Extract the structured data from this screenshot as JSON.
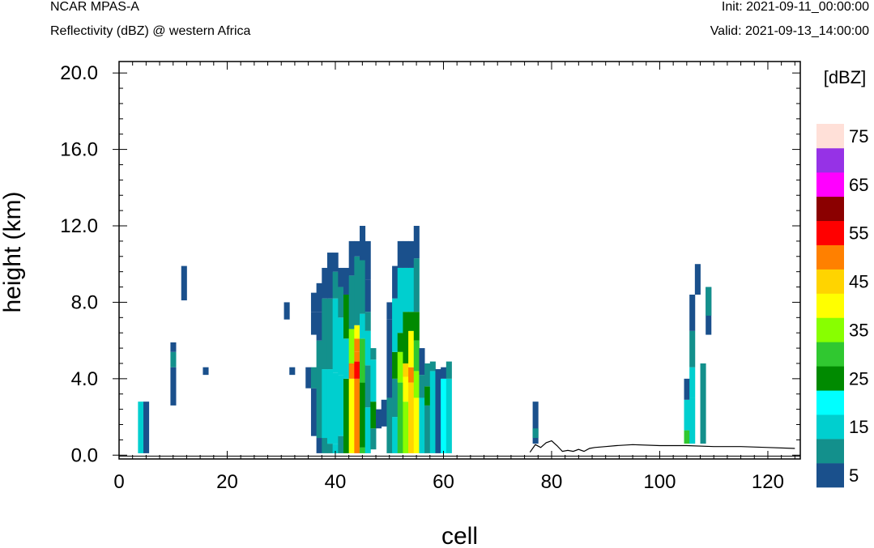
{
  "header": {
    "model": "NCAR MPAS-A",
    "field": "Reflectivity (dBZ) @ western Africa",
    "init": "Init: 2021-09-11_00:00:00",
    "valid": "Valid: 2021-09-13_14:00:00"
  },
  "chart_data": {
    "type": "heatmap",
    "xlabel": "cell",
    "ylabel": "height (km)",
    "xlim": [
      0,
      126
    ],
    "ylim": [
      -0.2,
      20.6
    ],
    "xticks": [
      "0",
      "20",
      "40",
      "60",
      "80",
      "100",
      "120"
    ],
    "xtick_values": [
      0,
      20,
      40,
      60,
      80,
      100,
      120
    ],
    "yticks": [
      "0.0",
      "4.0",
      "8.0",
      "12.0",
      "16.0",
      "20.0"
    ],
    "ytick_values": [
      0,
      4,
      8,
      12,
      16,
      20
    ],
    "colorbar": {
      "units": "[dBZ]",
      "levels": [
        5,
        10,
        15,
        20,
        25,
        30,
        35,
        40,
        45,
        50,
        55,
        60,
        65,
        70,
        75
      ],
      "labels": [
        "5",
        "15",
        "25",
        "35",
        "45",
        "55",
        "65",
        "75"
      ],
      "colors": [
        "#1a508c",
        "#13908c",
        "#00cfcf",
        "#00ffff",
        "#008a00",
        "#30c830",
        "#88ff00",
        "#ffff00",
        "#ffd400",
        "#ff8000",
        "#ff0000",
        "#8b0000",
        "#ff00ff",
        "#9632e6",
        "#ffe0d8"
      ]
    },
    "columns": [
      {
        "x": 4,
        "segs": [
          [
            0.1,
            2.8,
            2
          ]
        ]
      },
      {
        "x": 5,
        "segs": [
          [
            0.1,
            2.8,
            0
          ]
        ]
      },
      {
        "x": 10,
        "segs": [
          [
            2.6,
            4.6,
            0
          ],
          [
            4.6,
            5.4,
            1
          ],
          [
            5.4,
            5.9,
            0
          ]
        ]
      },
      {
        "x": 12,
        "segs": [
          [
            8.1,
            9.9,
            0
          ]
        ]
      },
      {
        "x": 16,
        "segs": [
          [
            4.2,
            4.6,
            0
          ]
        ]
      },
      {
        "x": 31,
        "segs": [
          [
            7.1,
            8.0,
            0
          ]
        ]
      },
      {
        "x": 32,
        "segs": [
          [
            4.2,
            4.6,
            0
          ]
        ]
      },
      {
        "x": 35,
        "segs": [
          [
            3.5,
            4.6,
            0
          ]
        ]
      },
      {
        "x": 36,
        "segs": [
          [
            1.0,
            3.5,
            0
          ],
          [
            3.5,
            4.6,
            1
          ],
          [
            6.3,
            7.5,
            0
          ],
          [
            7.5,
            8.5,
            0
          ]
        ]
      },
      {
        "x": 37,
        "segs": [
          [
            0.1,
            0.9,
            0
          ],
          [
            0.9,
            6.0,
            1
          ],
          [
            6.0,
            7.5,
            0
          ],
          [
            7.5,
            9.0,
            0
          ]
        ]
      },
      {
        "x": 38,
        "segs": [
          [
            0.1,
            0.9,
            1
          ],
          [
            0.9,
            4.5,
            2
          ],
          [
            4.5,
            8.2,
            1
          ],
          [
            8.2,
            9.8,
            0
          ]
        ]
      },
      {
        "x": 39,
        "segs": [
          [
            0.1,
            0.6,
            1
          ],
          [
            0.6,
            4.5,
            2
          ],
          [
            4.5,
            8.2,
            1
          ],
          [
            8.2,
            10.6,
            0
          ]
        ]
      },
      {
        "x": 40,
        "segs": [
          [
            0.1,
            0.6,
            2
          ],
          [
            0.6,
            4.3,
            2
          ],
          [
            4.3,
            8.2,
            2
          ],
          [
            8.2,
            9.6,
            1
          ],
          [
            9.6,
            10.6,
            0
          ]
        ]
      },
      {
        "x": 41,
        "segs": [
          [
            0.1,
            1.0,
            1
          ],
          [
            1.0,
            4.2,
            2
          ],
          [
            4.2,
            7.2,
            2
          ],
          [
            7.2,
            8.8,
            1
          ],
          [
            8.8,
            9.8,
            0
          ]
        ]
      },
      {
        "x": 42,
        "segs": [
          [
            0.1,
            4.0,
            4
          ],
          [
            4.0,
            6.1,
            2
          ],
          [
            6.1,
            8.4,
            4
          ],
          [
            8.4,
            9.8,
            0
          ]
        ]
      },
      {
        "x": 43,
        "segs": [
          [
            0.1,
            4.0,
            7
          ],
          [
            4.0,
            4.8,
            9
          ],
          [
            4.8,
            6.6,
            6
          ],
          [
            6.6,
            9.4,
            1
          ],
          [
            9.4,
            11.2,
            0
          ]
        ]
      },
      {
        "x": 44,
        "segs": [
          [
            0.1,
            4.0,
            9
          ],
          [
            4.0,
            4.9,
            10
          ],
          [
            4.9,
            5.4,
            9
          ],
          [
            5.4,
            6.1,
            9
          ],
          [
            6.1,
            6.8,
            7
          ],
          [
            6.8,
            10.4,
            1
          ],
          [
            10.4,
            11.2,
            0
          ]
        ]
      },
      {
        "x": 45,
        "segs": [
          [
            0.1,
            0.4,
            5
          ],
          [
            0.4,
            3.8,
            4
          ],
          [
            3.8,
            6.1,
            5
          ],
          [
            6.1,
            7.4,
            2
          ],
          [
            7.4,
            10.2,
            1
          ],
          [
            10.2,
            12.0,
            0
          ]
        ]
      },
      {
        "x": 46,
        "segs": [
          [
            0.1,
            2.5,
            2
          ],
          [
            2.5,
            4.7,
            1
          ],
          [
            4.7,
            6.5,
            2
          ],
          [
            6.5,
            7.5,
            1
          ],
          [
            7.5,
            9.2,
            0
          ],
          [
            9.2,
            11.2,
            0
          ]
        ]
      },
      {
        "x": 47,
        "segs": [
          [
            0.3,
            1.4,
            1
          ],
          [
            1.4,
            2.8,
            4
          ],
          [
            2.8,
            5.0,
            2
          ],
          [
            5.0,
            5.6,
            1
          ]
        ]
      },
      {
        "x": 48,
        "segs": [
          [
            1.4,
            2.4,
            0
          ]
        ]
      },
      {
        "x": 49,
        "segs": [
          [
            1.5,
            2.9,
            0
          ]
        ]
      },
      {
        "x": 50,
        "segs": [
          [
            0.1,
            3.0,
            1
          ],
          [
            3.0,
            7.1,
            0
          ],
          [
            7.1,
            8.0,
            0
          ]
        ]
      },
      {
        "x": 51,
        "segs": [
          [
            0.1,
            2.0,
            2
          ],
          [
            2.0,
            4.0,
            1
          ],
          [
            4.0,
            5.4,
            4
          ],
          [
            5.4,
            8.2,
            2
          ],
          [
            8.2,
            9.9,
            0
          ]
        ]
      },
      {
        "x": 52,
        "segs": [
          [
            0.1,
            3.8,
            5
          ],
          [
            3.8,
            5.4,
            6
          ],
          [
            5.4,
            6.4,
            4
          ],
          [
            6.4,
            9.8,
            2
          ],
          [
            9.8,
            11.2,
            0
          ]
        ]
      },
      {
        "x": 53,
        "segs": [
          [
            0.1,
            2.8,
            6
          ],
          [
            2.8,
            4.1,
            7
          ],
          [
            4.1,
            4.8,
            8
          ],
          [
            4.8,
            7.5,
            4
          ],
          [
            7.5,
            9.8,
            2
          ],
          [
            9.8,
            11.2,
            0
          ]
        ]
      },
      {
        "x": 54,
        "segs": [
          [
            0.1,
            3.8,
            8
          ],
          [
            3.8,
            4.6,
            9
          ],
          [
            4.6,
            6.5,
            7
          ],
          [
            6.5,
            7.5,
            4
          ],
          [
            7.5,
            9.8,
            2
          ],
          [
            9.8,
            11.2,
            0
          ]
        ]
      },
      {
        "x": 55,
        "segs": [
          [
            0.1,
            3.0,
            7
          ],
          [
            3.0,
            4.4,
            6
          ],
          [
            4.4,
            6.0,
            5
          ],
          [
            6.0,
            7.5,
            4
          ],
          [
            7.5,
            10.3,
            1
          ],
          [
            10.3,
            12.0,
            0
          ]
        ]
      },
      {
        "x": 56,
        "segs": [
          [
            0.1,
            3.0,
            2
          ],
          [
            3.0,
            4.2,
            1
          ],
          [
            4.2,
            5.6,
            0
          ]
        ]
      },
      {
        "x": 57,
        "segs": [
          [
            0.1,
            2.6,
            1
          ],
          [
            2.6,
            3.6,
            4
          ],
          [
            3.6,
            4.8,
            1
          ]
        ]
      },
      {
        "x": 58,
        "segs": [
          [
            0.1,
            4.4,
            2
          ],
          [
            4.4,
            4.9,
            1
          ]
        ]
      },
      {
        "x": 59,
        "segs": [
          [
            0.1,
            4.5,
            0
          ]
        ]
      },
      {
        "x": 60,
        "segs": [
          [
            0.1,
            4.0,
            3
          ],
          [
            4.0,
            4.6,
            0
          ]
        ]
      },
      {
        "x": 61,
        "segs": [
          [
            0.1,
            4.0,
            2
          ],
          [
            4.0,
            4.9,
            1
          ]
        ]
      },
      {
        "x": 77,
        "segs": [
          [
            0.6,
            2.8,
            0
          ],
          [
            0.9,
            1.4,
            1
          ]
        ]
      },
      {
        "x": 105,
        "segs": [
          [
            0.6,
            1.3,
            5
          ],
          [
            1.3,
            2.9,
            2
          ],
          [
            2.9,
            4.0,
            0
          ]
        ]
      },
      {
        "x": 106,
        "segs": [
          [
            0.6,
            3.0,
            2
          ],
          [
            3.0,
            4.6,
            2
          ],
          [
            4.6,
            6.5,
            1
          ],
          [
            6.5,
            8.4,
            0
          ]
        ]
      },
      {
        "x": 107,
        "segs": [
          [
            8.4,
            10.0,
            0
          ]
        ]
      },
      {
        "x": 108,
        "segs": [
          [
            0.6,
            4.8,
            1
          ]
        ]
      },
      {
        "x": 109,
        "segs": [
          [
            6.3,
            8.8,
            0
          ],
          [
            7.3,
            8.8,
            1
          ]
        ]
      }
    ],
    "terrain": [
      [
        76,
        0.15
      ],
      [
        77,
        0.55
      ],
      [
        78,
        0.4
      ],
      [
        79,
        0.65
      ],
      [
        80,
        0.75
      ],
      [
        81,
        0.5
      ],
      [
        82,
        0.2
      ],
      [
        83,
        0.25
      ],
      [
        84,
        0.2
      ],
      [
        85,
        0.3
      ],
      [
        86,
        0.2
      ],
      [
        87,
        0.35
      ],
      [
        88,
        0.4
      ],
      [
        90,
        0.45
      ],
      [
        92,
        0.5
      ],
      [
        95,
        0.55
      ],
      [
        100,
        0.5
      ],
      [
        105,
        0.5
      ],
      [
        110,
        0.45
      ],
      [
        115,
        0.45
      ],
      [
        120,
        0.4
      ],
      [
        125,
        0.35
      ]
    ]
  }
}
